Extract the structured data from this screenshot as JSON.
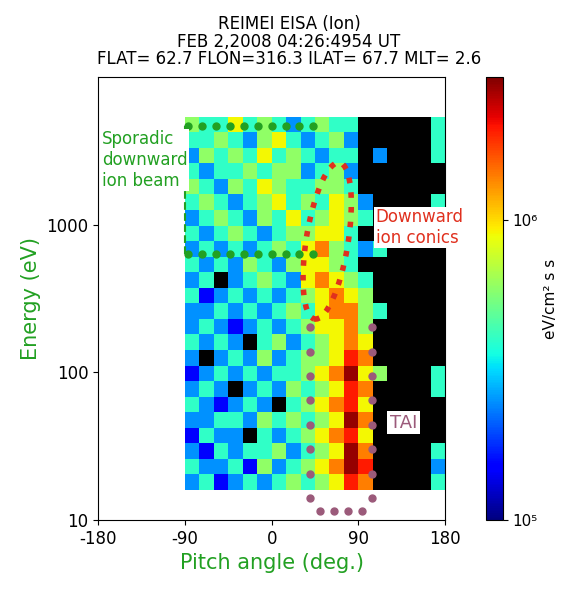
{
  "chart_data": {
    "type": "heatmap",
    "title": "REIMEI EISA (Ion)",
    "subtitle": [
      "FEB 2,2008 04:26:4954 UT",
      "FLAT= 62.7 FLON=316.3 ILAT= 67.7 MLT= 2.6"
    ],
    "xlabel": "Pitch angle (deg.)",
    "ylabel": "Energy (eV)",
    "log": "y",
    "xlim": [
      -180,
      180
    ],
    "xticks": [
      -180,
      -90,
      0,
      90,
      180
    ],
    "ylim": [
      10,
      10000
    ],
    "yticks": [
      10,
      100,
      1000
    ],
    "pitch_angle_edges": [
      -90,
      -75,
      -60,
      -45,
      -30,
      -15,
      0,
      15,
      30,
      45,
      60,
      75,
      90,
      105,
      120,
      135,
      150,
      165,
      180
    ],
    "energy_edges": [
      16,
      20.4,
      26,
      33.1,
      42.2,
      53.8,
      68.5,
      87.3,
      111,
      142,
      181,
      230,
      293,
      374,
      476,
      607,
      773,
      985,
      1255,
      1599,
      2037,
      2595,
      3306,
      4212,
      5366
    ],
    "cells": [
      [
        250000.0,
        400000.0,
        150000.0,
        250000.0,
        400000.0,
        250000.0,
        400000.0,
        600000.0,
        400000.0,
        600000.0,
        900000.0,
        2000000.0,
        1400000.0,
        null,
        null,
        null,
        null,
        400000.0
      ],
      [
        400000.0,
        250000.0,
        250000.0,
        400000.0,
        150000.0,
        600000.0,
        250000.0,
        400000.0,
        600000.0,
        900000.0,
        1400000.0,
        2800000.0,
        2000000.0,
        null,
        null,
        null,
        null,
        250000.0
      ],
      [
        250000.0,
        150000.0,
        400000.0,
        250000.0,
        400000.0,
        400000.0,
        600000.0,
        250000.0,
        400000.0,
        600000.0,
        900000.0,
        2800000.0,
        1400000.0,
        null,
        null,
        null,
        null,
        400000.0
      ],
      [
        150000.0,
        400000.0,
        250000.0,
        250000.0,
        null,
        400000.0,
        250000.0,
        400000.0,
        600000.0,
        900000.0,
        1400000.0,
        2000000.0,
        900000.0,
        null,
        null,
        null,
        null,
        null
      ],
      [
        250000.0,
        250000.0,
        400000.0,
        400000.0,
        250000.0,
        600000.0,
        400000.0,
        600000.0,
        400000.0,
        600000.0,
        900000.0,
        2800000.0,
        1400000.0,
        null,
        null,
        null,
        null,
        null
      ],
      [
        400000.0,
        250000.0,
        150000.0,
        250000.0,
        400000.0,
        250000.0,
        null,
        400000.0,
        600000.0,
        900000.0,
        1400000.0,
        2000000.0,
        900000.0,
        null,
        null,
        null,
        null,
        null
      ],
      [
        250000.0,
        400000.0,
        250000.0,
        null,
        250000.0,
        400000.0,
        250000.0,
        600000.0,
        400000.0,
        600000.0,
        900000.0,
        2000000.0,
        1400000.0,
        null,
        null,
        null,
        null,
        400000.0
      ],
      [
        150000.0,
        250000.0,
        400000.0,
        250000.0,
        400000.0,
        250000.0,
        400000.0,
        400000.0,
        600000.0,
        900000.0,
        1400000.0,
        2800000.0,
        900000.0,
        600000.0,
        null,
        null,
        null,
        400000.0
      ],
      [
        250000.0,
        null,
        250000.0,
        400000.0,
        250000.0,
        600000.0,
        250000.0,
        400000.0,
        600000.0,
        600000.0,
        900000.0,
        2000000.0,
        1400000.0,
        null,
        null,
        null,
        null,
        null
      ],
      [
        400000.0,
        250000.0,
        400000.0,
        250000.0,
        null,
        400000.0,
        600000.0,
        250000.0,
        400000.0,
        600000.0,
        900000.0,
        1400000.0,
        900000.0,
        null,
        null,
        null,
        null,
        null
      ],
      [
        250000.0,
        400000.0,
        250000.0,
        150000.0,
        250000.0,
        400000.0,
        250000.0,
        400000.0,
        600000.0,
        900000.0,
        900000.0,
        1400000.0,
        600000.0,
        null,
        null,
        null,
        null,
        null
      ],
      [
        250000.0,
        250000.0,
        400000.0,
        250000.0,
        400000.0,
        250000.0,
        400000.0,
        600000.0,
        400000.0,
        900000.0,
        1400000.0,
        1400000.0,
        600000.0,
        400000.0,
        null,
        null,
        null,
        null
      ],
      [
        400000.0,
        150000.0,
        250000.0,
        400000.0,
        250000.0,
        400000.0,
        250000.0,
        400000.0,
        600000.0,
        900000.0,
        1400000.0,
        900000.0,
        600000.0,
        null,
        null,
        null,
        null,
        null
      ],
      [
        250000.0,
        400000.0,
        null,
        250000.0,
        400000.0,
        600000.0,
        400000.0,
        250000.0,
        900000.0,
        1400000.0,
        900000.0,
        600000.0,
        400000.0,
        null,
        null,
        null,
        null,
        null
      ],
      [
        400000.0,
        250000.0,
        400000.0,
        250000.0,
        600000.0,
        400000.0,
        250000.0,
        600000.0,
        900000.0,
        900000.0,
        600000.0,
        400000.0,
        null,
        null,
        null,
        null,
        null,
        null
      ],
      [
        250000.0,
        400000.0,
        250000.0,
        400000.0,
        250000.0,
        400000.0,
        600000.0,
        400000.0,
        900000.0,
        1400000.0,
        600000.0,
        400000.0,
        250000.0,
        400000.0,
        null,
        null,
        null,
        null
      ],
      [
        400000.0,
        250000.0,
        400000.0,
        600000.0,
        400000.0,
        250000.0,
        400000.0,
        600000.0,
        600000.0,
        900000.0,
        900000.0,
        400000.0,
        null,
        null,
        null,
        null,
        null,
        400000.0
      ],
      [
        250000.0,
        400000.0,
        600000.0,
        400000.0,
        250000.0,
        600000.0,
        400000.0,
        900000.0,
        400000.0,
        600000.0,
        900000.0,
        600000.0,
        400000.0,
        null,
        null,
        null,
        null,
        400000.0
      ],
      [
        400000.0,
        600000.0,
        400000.0,
        250000.0,
        400000.0,
        600000.0,
        900000.0,
        400000.0,
        600000.0,
        400000.0,
        900000.0,
        600000.0,
        250000.0,
        null,
        null,
        null,
        null,
        400000.0
      ],
      [
        600000.0,
        400000.0,
        250000.0,
        600000.0,
        400000.0,
        900000.0,
        600000.0,
        400000.0,
        400000.0,
        600000.0,
        600000.0,
        400000.0,
        null,
        null,
        null,
        null,
        null,
        null
      ],
      [
        400000.0,
        250000.0,
        400000.0,
        400000.0,
        600000.0,
        400000.0,
        600000.0,
        600000.0,
        250000.0,
        400000.0,
        600000.0,
        250000.0,
        null,
        null,
        null,
        null,
        null,
        null
      ],
      [
        250000.0,
        600000.0,
        400000.0,
        600000.0,
        400000.0,
        900000.0,
        400000.0,
        600000.0,
        400000.0,
        250000.0,
        400000.0,
        400000.0,
        null,
        250000.0,
        null,
        null,
        null,
        400000.0
      ],
      [
        400000.0,
        400000.0,
        600000.0,
        400000.0,
        250000.0,
        600000.0,
        900000.0,
        400000.0,
        250000.0,
        400000.0,
        600000.0,
        250000.0,
        null,
        null,
        null,
        null,
        null,
        400000.0
      ],
      [
        600000.0,
        400000.0,
        400000.0,
        900000.0,
        400000.0,
        600000.0,
        400000.0,
        250000.0,
        400000.0,
        600000.0,
        400000.0,
        400000.0,
        null,
        null,
        null,
        null,
        null,
        400000.0
      ]
    ],
    "colorbar": {
      "label": "eV/cm² s s",
      "range": [
        100000,
        3000000
      ],
      "ticks": [
        {
          "value": 100000,
          "label": "10⁵"
        },
        {
          "value": 1000000,
          "label": "10⁶"
        }
      ]
    },
    "annotations": [
      {
        "text": "Sporadic\ndownward\nion beam",
        "color": "#22a022"
      },
      {
        "text": "Downward\nion conics",
        "color": "#e0301e"
      },
      {
        "text": "TAI",
        "color": "#9b5a7a"
      }
    ]
  }
}
